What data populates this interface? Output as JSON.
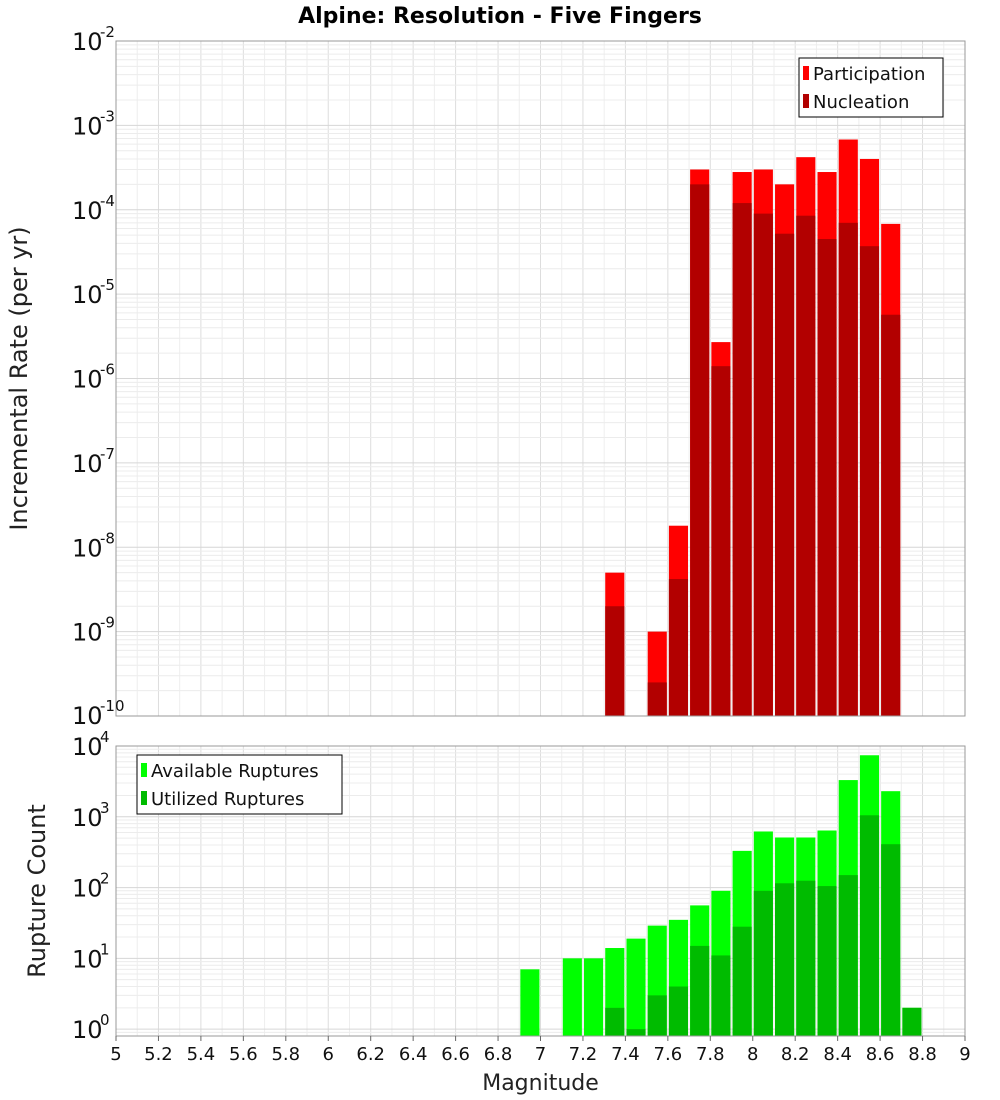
{
  "chart_data": [
    {
      "type": "bar",
      "title": "Alpine: Resolution - Five Fingers",
      "ylabel": "Incremental Rate (per yr)",
      "xlabel": "",
      "yscale": "log",
      "ylim": [
        1e-10,
        0.01
      ],
      "ytick_exponents": [
        "-2",
        "-3",
        "-4",
        "-5",
        "-6",
        "-7",
        "-8",
        "-9",
        "-10"
      ],
      "ytick_base": "10",
      "xlim": [
        5,
        9
      ],
      "legend_position": "top-right",
      "grid": true,
      "bar_width": 0.09,
      "x": [
        7.35,
        7.55,
        7.65,
        7.75,
        7.85,
        7.95,
        8.05,
        8.15,
        8.25,
        8.35,
        8.45,
        8.55,
        8.65
      ],
      "series": [
        {
          "name": "Participation",
          "color": "#ff0000",
          "values": [
            5e-09,
            1e-09,
            1.8e-08,
            0.0003,
            2.7e-06,
            0.00028,
            0.0003,
            0.0002,
            0.00042,
            0.00028,
            0.00068,
            0.0004,
            6.8e-05
          ]
        },
        {
          "name": "Nucleation",
          "color": "#b20000",
          "values": [
            2e-09,
            2.5e-10,
            4.2e-09,
            0.0002,
            1.4e-06,
            0.00012,
            9e-05,
            5.2e-05,
            8.5e-05,
            4.5e-05,
            7e-05,
            3.7e-05,
            5.7e-06
          ]
        }
      ]
    },
    {
      "type": "bar",
      "title": "",
      "ylabel": "Rupture Count",
      "xlabel": "Magnitude",
      "yscale": "log",
      "ylim": [
        0.8,
        10000
      ],
      "ytick_exponents": [
        "4",
        "3",
        "2",
        "1",
        "0"
      ],
      "ytick_base": "10",
      "xlim": [
        5,
        9
      ],
      "xticks": [
        "5",
        "5.2",
        "5.4",
        "5.6",
        "5.8",
        "6",
        "6.2",
        "6.4",
        "6.6",
        "6.8",
        "7",
        "7.2",
        "7.4",
        "7.6",
        "7.8",
        "8",
        "8.2",
        "8.4",
        "8.6",
        "8.8",
        "9"
      ],
      "legend_position": "top-left",
      "grid": true,
      "bar_width": 0.09,
      "x": [
        6.95,
        7.15,
        7.25,
        7.35,
        7.45,
        7.55,
        7.65,
        7.75,
        7.85,
        7.95,
        8.05,
        8.15,
        8.25,
        8.35,
        8.45,
        8.55,
        8.65,
        8.75
      ],
      "series": [
        {
          "name": "Available Ruptures",
          "color": "#00ff00",
          "values": [
            7,
            10,
            10,
            14,
            19,
            29,
            35,
            56,
            90,
            330,
            620,
            510,
            510,
            640,
            3300,
            7400,
            2300,
            2
          ]
        },
        {
          "name": "Utilized Ruptures",
          "color": "#00bb00",
          "values": [
            0,
            0,
            0,
            2,
            1,
            3,
            4,
            15,
            11,
            28,
            90,
            115,
            125,
            105,
            150,
            1050,
            410,
            2
          ]
        }
      ]
    }
  ]
}
